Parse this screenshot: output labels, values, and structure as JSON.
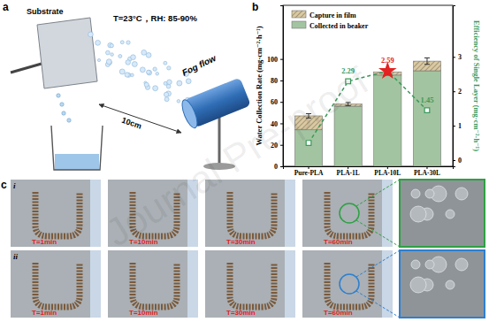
{
  "chart_data": {
    "type": "bar",
    "stacked": true,
    "categories": [
      "Pure-PLA",
      "PLA-1L",
      "PLA-10L",
      "PLA-30L"
    ],
    "y_label": "Water Collection Rate (mg·cm⁻²·h⁻¹)",
    "y2_label": "Efficiency of Single Layer (mg·cm⁻²·h⁻¹)",
    "ylim": [
      0,
      150
    ],
    "yticks": [
      0,
      20,
      40,
      60,
      80,
      100
    ],
    "y2lim": [
      -0.18,
      4.5
    ],
    "y2ticks": [
      0,
      1,
      2,
      3
    ],
    "legend": "top-left",
    "series": [
      {
        "name": "Collected in beaker",
        "color": "#a3c4a0",
        "values": [
          34,
          56,
          85,
          89
        ]
      },
      {
        "name": "Capture in film",
        "color": "#d9c9a3",
        "values": [
          13,
          2,
          3,
          9
        ],
        "errors": [
          2,
          1.5,
          3,
          3
        ]
      },
      {
        "type": "line",
        "axis": "y2",
        "color": "#3a9a5b",
        "marker": "square",
        "line_style": "dashed",
        "values": [
          0.5,
          2.29,
          2.59,
          1.45
        ],
        "value_labels": [
          null,
          "2.29",
          "2.59",
          "1.45"
        ]
      }
    ]
  },
  "figure": {
    "panel_labels": [
      "a",
      "b",
      "c"
    ],
    "diagram": {
      "substrate": "Substrate",
      "conditions": "T=23°C，RH: 85-90%",
      "fog": "Fog flow",
      "distance": "10cm"
    },
    "photos": {
      "rows": [
        "i",
        "ii"
      ],
      "times": [
        [
          "T=1min",
          "T=10min",
          "T=30min",
          "T=60min"
        ],
        [
          "T=1min",
          "T=10min",
          "T=30min",
          "T=60min"
        ]
      ]
    },
    "watermark": "Journal Pre-proof"
  }
}
